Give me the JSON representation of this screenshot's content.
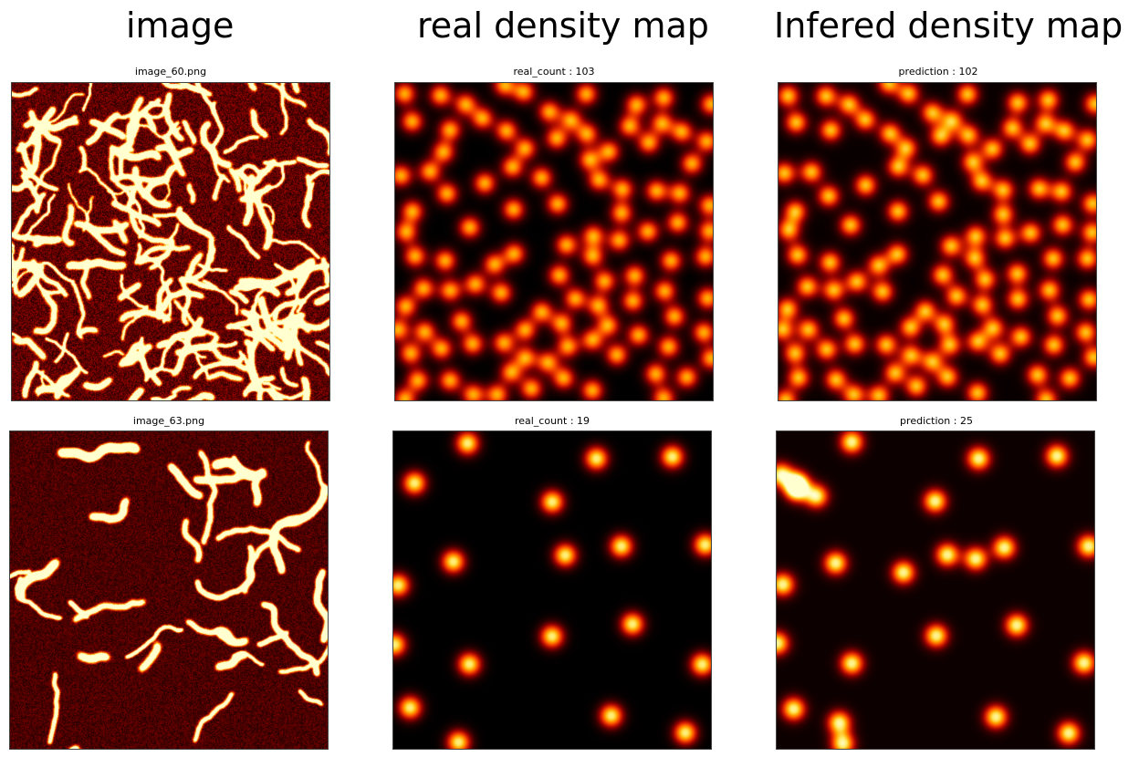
{
  "columns": {
    "image": "image",
    "real": "real density map",
    "inferred": "Infered density map"
  },
  "rows": [
    {
      "image_name": "image_60.png",
      "real_label": "real_count : 103",
      "pred_label": "prediction : 102",
      "real_count": 103,
      "prediction": 102
    },
    {
      "image_name": "image_63.png",
      "real_label": "real_count : 19",
      "pred_label": "prediction : 25",
      "real_count": 19,
      "prediction": 25
    }
  ],
  "colormap": [
    "#000000",
    "#3a0000",
    "#8b0000",
    "#d42000",
    "#ff5a00",
    "#ffa800",
    "#ffe860",
    "#ffffd0"
  ]
}
